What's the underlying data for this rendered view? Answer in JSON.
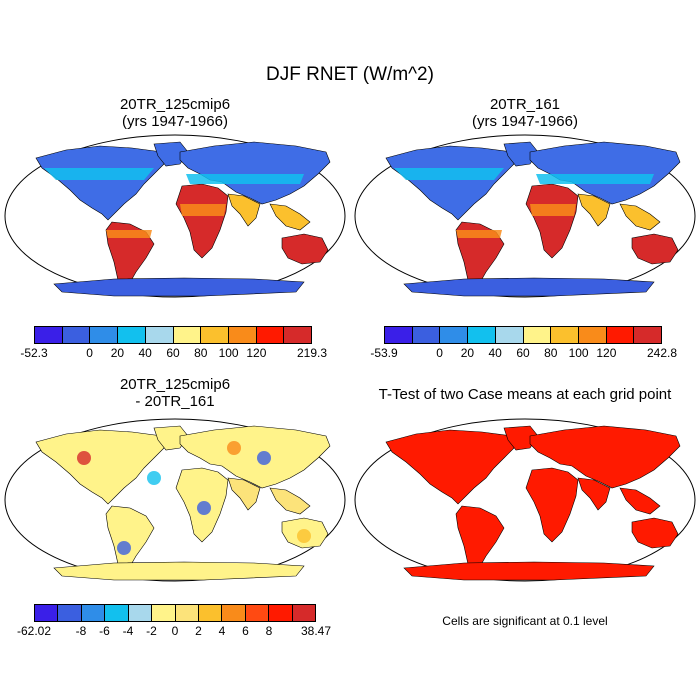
{
  "title": "DJF RNET (W/m^2)",
  "panels": [
    {
      "title_line1": "20TR_125cmip6",
      "title_line2": "(yrs 1947-1966)",
      "kind": "field"
    },
    {
      "title_line1": "20TR_161",
      "title_line2": "(yrs 1947-1966)",
      "kind": "field"
    },
    {
      "title_line1": "20TR_125cmip6",
      "title_line2": "- 20TR_161",
      "kind": "diff"
    },
    {
      "title_line1": "T-Test of two Case means at each grid point",
      "title_line2": "",
      "kind": "ttest"
    }
  ],
  "colorbars": {
    "field1": {
      "colors": [
        "#3a1fe8",
        "#3b5fe0",
        "#2f8de8",
        "#12c0ee",
        "#a8d8ec",
        "#fff38a",
        "#fbc02d",
        "#f98b1a",
        "#ff1a00",
        "#d62a2a"
      ],
      "labels": [
        "-52.3",
        "0",
        "20",
        "40",
        "60",
        "80",
        "100",
        "120",
        "219.3"
      ]
    },
    "field2": {
      "colors": [
        "#3a1fe8",
        "#3b5fe0",
        "#2f8de8",
        "#12c0ee",
        "#a8d8ec",
        "#fff38a",
        "#fbc02d",
        "#f98b1a",
        "#ff1a00",
        "#d62a2a"
      ],
      "labels": [
        "-53.9",
        "0",
        "20",
        "40",
        "60",
        "80",
        "100",
        "120",
        "242.8"
      ]
    },
    "diff": {
      "colors": [
        "#3a1fe8",
        "#3b5fe0",
        "#2f8de8",
        "#12c0ee",
        "#a8d8ec",
        "#fff38a",
        "#fce37a",
        "#fbc02d",
        "#f98b1a",
        "#ff4a12",
        "#ff1a00",
        "#d62a2a"
      ],
      "labels": [
        "-62.02",
        "-8",
        "-6",
        "-4",
        "-2",
        "0",
        "2",
        "4",
        "6",
        "8",
        "38.47"
      ]
    }
  },
  "note": "Cells are significant at 0.1 level"
}
